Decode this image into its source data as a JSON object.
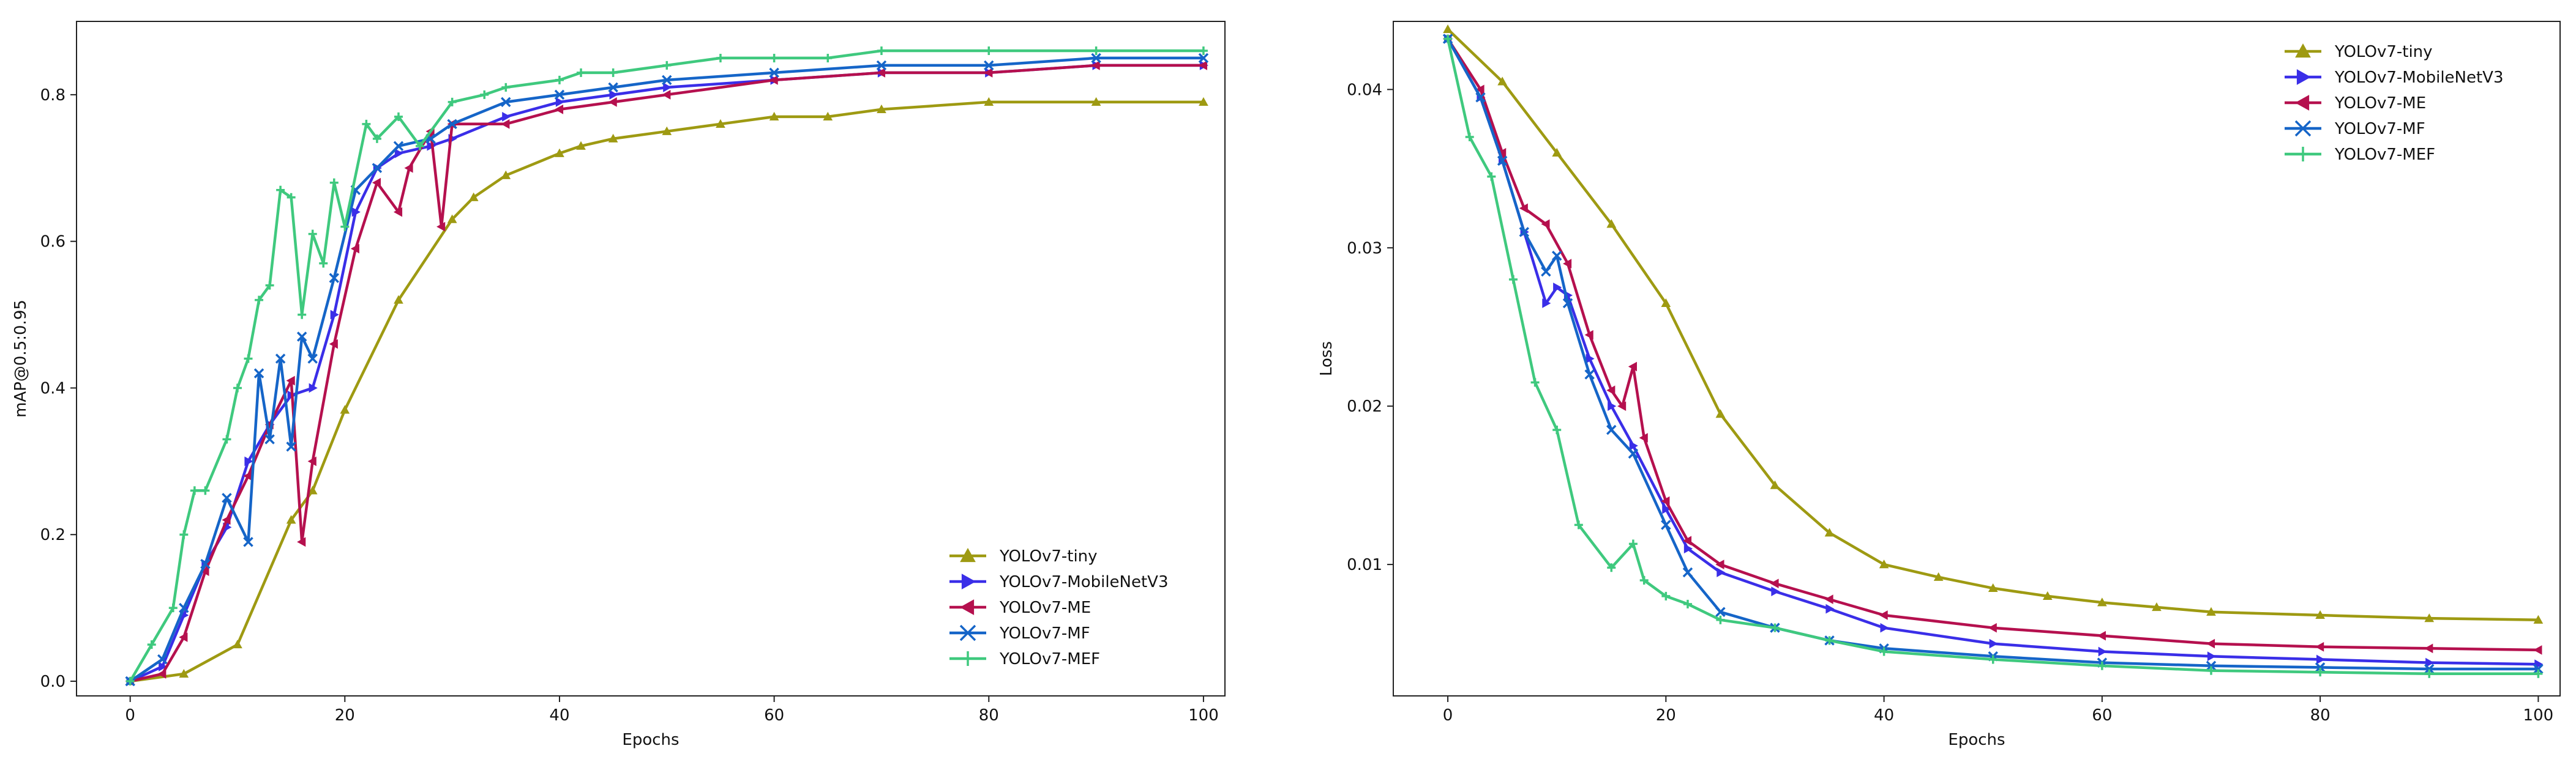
{
  "chart_data": [
    {
      "type": "line",
      "title": "",
      "xlabel": "Epochs",
      "ylabel": "mAP@0.5:0.95",
      "xlim": [
        -5,
        102
      ],
      "ylim": [
        -0.02,
        0.9
      ],
      "xticks": [
        0,
        20,
        40,
        60,
        80,
        100
      ],
      "yticks": [
        0.0,
        0.2,
        0.4,
        0.6,
        0.8
      ],
      "ytick_labels": [
        "0.0",
        "0.2",
        "0.4",
        "0.6",
        "0.8"
      ],
      "legend_position": "bottom-right",
      "grid": false,
      "series": [
        {
          "name": "YOLOv7-tiny",
          "color": "#9e9a12",
          "marker": "triangle-up",
          "x": [
            0,
            5,
            10,
            15,
            17,
            20,
            25,
            30,
            32,
            35,
            40,
            42,
            45,
            50,
            55,
            60,
            65,
            70,
            80,
            90,
            100
          ],
          "values": [
            0.0,
            0.01,
            0.05,
            0.22,
            0.26,
            0.37,
            0.52,
            0.63,
            0.66,
            0.69,
            0.72,
            0.73,
            0.74,
            0.75,
            0.76,
            0.77,
            0.77,
            0.78,
            0.79,
            0.79,
            0.79
          ]
        },
        {
          "name": "YOLOv7-MobileNetV3",
          "color": "#3a2ee8",
          "marker": "triangle-right",
          "x": [
            0,
            3,
            5,
            7,
            9,
            11,
            13,
            15,
            17,
            19,
            21,
            23,
            25,
            28,
            30,
            35,
            40,
            45,
            50,
            60,
            70,
            80,
            90,
            100
          ],
          "values": [
            0.0,
            0.02,
            0.09,
            0.16,
            0.21,
            0.3,
            0.35,
            0.39,
            0.4,
            0.5,
            0.64,
            0.7,
            0.72,
            0.73,
            0.74,
            0.77,
            0.79,
            0.8,
            0.81,
            0.82,
            0.83,
            0.83,
            0.84,
            0.84
          ]
        },
        {
          "name": "YOLOv7-ME",
          "color": "#b5104e",
          "marker": "triangle-left",
          "x": [
            0,
            3,
            5,
            7,
            9,
            11,
            13,
            15,
            16,
            17,
            19,
            21,
            23,
            25,
            26,
            28,
            29,
            30,
            35,
            40,
            45,
            50,
            60,
            70,
            80,
            90,
            100
          ],
          "values": [
            0.0,
            0.01,
            0.06,
            0.15,
            0.22,
            0.28,
            0.35,
            0.41,
            0.19,
            0.3,
            0.46,
            0.59,
            0.68,
            0.64,
            0.7,
            0.75,
            0.62,
            0.76,
            0.76,
            0.78,
            0.79,
            0.8,
            0.82,
            0.83,
            0.83,
            0.84,
            0.84
          ]
        },
        {
          "name": "YOLOv7-MF",
          "color": "#1565c8",
          "marker": "x",
          "x": [
            0,
            3,
            5,
            7,
            9,
            11,
            12,
            13,
            14,
            15,
            16,
            17,
            19,
            21,
            23,
            25,
            28,
            30,
            35,
            40,
            45,
            50,
            60,
            70,
            80,
            90,
            100
          ],
          "values": [
            0.0,
            0.03,
            0.1,
            0.16,
            0.25,
            0.19,
            0.42,
            0.33,
            0.44,
            0.32,
            0.47,
            0.44,
            0.55,
            0.67,
            0.7,
            0.73,
            0.74,
            0.76,
            0.79,
            0.8,
            0.81,
            0.82,
            0.83,
            0.84,
            0.84,
            0.85,
            0.85
          ]
        },
        {
          "name": "YOLOv7-MEF",
          "color": "#3fc97e",
          "marker": "plus",
          "x": [
            0,
            2,
            4,
            5,
            6,
            7,
            9,
            10,
            11,
            12,
            13,
            14,
            15,
            16,
            17,
            18,
            19,
            20,
            22,
            23,
            25,
            27,
            30,
            33,
            35,
            40,
            42,
            45,
            50,
            55,
            60,
            65,
            70,
            80,
            90,
            100
          ],
          "values": [
            0.0,
            0.05,
            0.1,
            0.2,
            0.26,
            0.26,
            0.33,
            0.4,
            0.44,
            0.52,
            0.54,
            0.67,
            0.66,
            0.5,
            0.61,
            0.57,
            0.68,
            0.62,
            0.76,
            0.74,
            0.77,
            0.73,
            0.79,
            0.8,
            0.81,
            0.82,
            0.83,
            0.83,
            0.84,
            0.85,
            0.85,
            0.85,
            0.86,
            0.86,
            0.86,
            0.86
          ]
        }
      ]
    },
    {
      "type": "line",
      "title": "",
      "xlabel": "Epochs",
      "ylabel": "Loss",
      "xlim": [
        -5,
        102
      ],
      "ylim": [
        0.0017,
        0.0443
      ],
      "xticks": [
        0,
        20,
        40,
        60,
        80,
        100
      ],
      "yticks": [
        0.01,
        0.02,
        0.03,
        0.04
      ],
      "ytick_labels": [
        "0.01",
        "0.02",
        "0.03",
        "0.04"
      ],
      "legend_position": "top-right",
      "grid": false,
      "series": [
        {
          "name": "YOLOv7-tiny",
          "color": "#9e9a12",
          "marker": "triangle-up",
          "x": [
            0,
            5,
            10,
            15,
            20,
            25,
            30,
            35,
            40,
            45,
            50,
            55,
            60,
            65,
            70,
            80,
            90,
            100
          ],
          "values": [
            0.0438,
            0.0405,
            0.036,
            0.0315,
            0.0265,
            0.0195,
            0.015,
            0.012,
            0.01,
            0.0092,
            0.0085,
            0.008,
            0.0076,
            0.0073,
            0.007,
            0.0068,
            0.0066,
            0.0065
          ]
        },
        {
          "name": "YOLOv7-MobileNetV3",
          "color": "#3a2ee8",
          "marker": "triangle-right",
          "x": [
            0,
            3,
            5,
            7,
            9,
            10,
            11,
            13,
            15,
            17,
            20,
            22,
            25,
            30,
            35,
            40,
            50,
            60,
            70,
            80,
            90,
            100
          ],
          "values": [
            0.0432,
            0.0395,
            0.0355,
            0.031,
            0.0265,
            0.0275,
            0.027,
            0.023,
            0.02,
            0.0175,
            0.0135,
            0.011,
            0.0095,
            0.0083,
            0.0072,
            0.006,
            0.005,
            0.0045,
            0.0042,
            0.004,
            0.0038,
            0.0037
          ]
        },
        {
          "name": "YOLOv7-ME",
          "color": "#b5104e",
          "marker": "triangle-left",
          "x": [
            0,
            3,
            5,
            7,
            9,
            11,
            13,
            15,
            16,
            17,
            18,
            20,
            22,
            25,
            30,
            35,
            40,
            50,
            60,
            70,
            80,
            90,
            100
          ],
          "values": [
            0.0432,
            0.04,
            0.036,
            0.0325,
            0.0315,
            0.029,
            0.0245,
            0.021,
            0.02,
            0.0225,
            0.018,
            0.014,
            0.0115,
            0.01,
            0.0088,
            0.0078,
            0.0068,
            0.006,
            0.0055,
            0.005,
            0.0048,
            0.0047,
            0.0046
          ]
        },
        {
          "name": "YOLOv7-MF",
          "color": "#1565c8",
          "marker": "x",
          "x": [
            0,
            3,
            5,
            7,
            9,
            10,
            11,
            13,
            15,
            17,
            20,
            22,
            25,
            30,
            35,
            40,
            50,
            60,
            70,
            80,
            90,
            100
          ],
          "values": [
            0.0432,
            0.0395,
            0.0355,
            0.031,
            0.0285,
            0.0295,
            0.0265,
            0.022,
            0.0185,
            0.017,
            0.0125,
            0.0095,
            0.007,
            0.006,
            0.0052,
            0.0047,
            0.0042,
            0.0038,
            0.0036,
            0.0035,
            0.0034,
            0.0034
          ]
        },
        {
          "name": "YOLOv7-MEF",
          "color": "#3fc97e",
          "marker": "plus",
          "x": [
            0,
            2,
            4,
            6,
            8,
            10,
            12,
            15,
            17,
            18,
            20,
            22,
            25,
            30,
            35,
            40,
            50,
            60,
            70,
            80,
            90,
            100
          ],
          "values": [
            0.0432,
            0.037,
            0.0345,
            0.028,
            0.0215,
            0.0185,
            0.0125,
            0.0098,
            0.0113,
            0.009,
            0.008,
            0.0075,
            0.0065,
            0.006,
            0.0052,
            0.0045,
            0.004,
            0.0036,
            0.0033,
            0.0032,
            0.0031,
            0.0031
          ]
        }
      ]
    }
  ]
}
